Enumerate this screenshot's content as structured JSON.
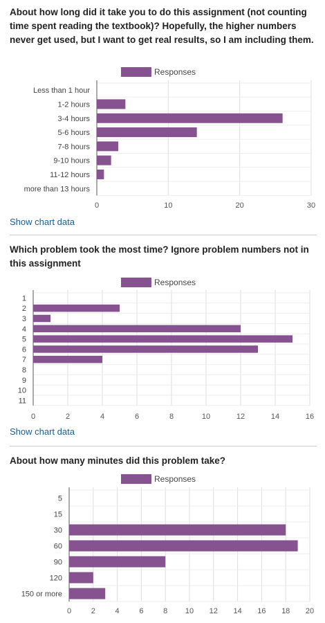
{
  "show_data_label": "Show chart data",
  "colors": {
    "bar": "#86528f",
    "grid": "#dddddd",
    "axis": "#555555"
  },
  "sections": [
    {
      "question": "About how long did it take you to do this assignment (not counting time spent reading the textbook)? Hopefully, the higher numbers never get used, but I want to get real results, so I am including them.",
      "legend": "Responses"
    },
    {
      "question": "Which problem took the most time? Ignore problem numbers not in this assignment",
      "legend": "Responses"
    },
    {
      "question": "About how many minutes did this problem take?",
      "legend": "Responses"
    }
  ],
  "chart_data": [
    {
      "type": "bar",
      "orientation": "horizontal",
      "categories": [
        "Less than 1 hour",
        "1-2 hours",
        "3-4 hours",
        "5-6 hours",
        "7-8 hours",
        "9-10 hours",
        "11-12 hours",
        "more than 13 hours"
      ],
      "series": [
        {
          "name": "Responses",
          "values": [
            0,
            4,
            26,
            14,
            3,
            2,
            1,
            0
          ]
        }
      ],
      "xlim": [
        0,
        30
      ],
      "xticks": [
        0,
        10,
        20,
        30
      ],
      "legend_position": "top",
      "grid": true
    },
    {
      "type": "bar",
      "orientation": "horizontal",
      "categories": [
        "1",
        "2",
        "3",
        "4",
        "5",
        "6",
        "7",
        "8",
        "9",
        "10",
        "11"
      ],
      "series": [
        {
          "name": "Responses",
          "values": [
            0,
            5,
            1,
            12,
            15,
            13,
            4,
            0,
            0,
            0,
            0
          ]
        }
      ],
      "xlim": [
        0,
        16
      ],
      "xticks": [
        0,
        2,
        4,
        6,
        8,
        10,
        12,
        14,
        16
      ],
      "legend_position": "top",
      "grid": true
    },
    {
      "type": "bar",
      "orientation": "horizontal",
      "categories": [
        "5",
        "15",
        "30",
        "60",
        "90",
        "120",
        "150 or more"
      ],
      "series": [
        {
          "name": "Responses",
          "values": [
            0,
            0,
            18,
            19,
            8,
            2,
            3
          ]
        }
      ],
      "xlim": [
        0,
        20
      ],
      "xticks": [
        0,
        2,
        4,
        6,
        8,
        10,
        12,
        14,
        16,
        18,
        20
      ],
      "legend_position": "top",
      "grid": true
    }
  ]
}
